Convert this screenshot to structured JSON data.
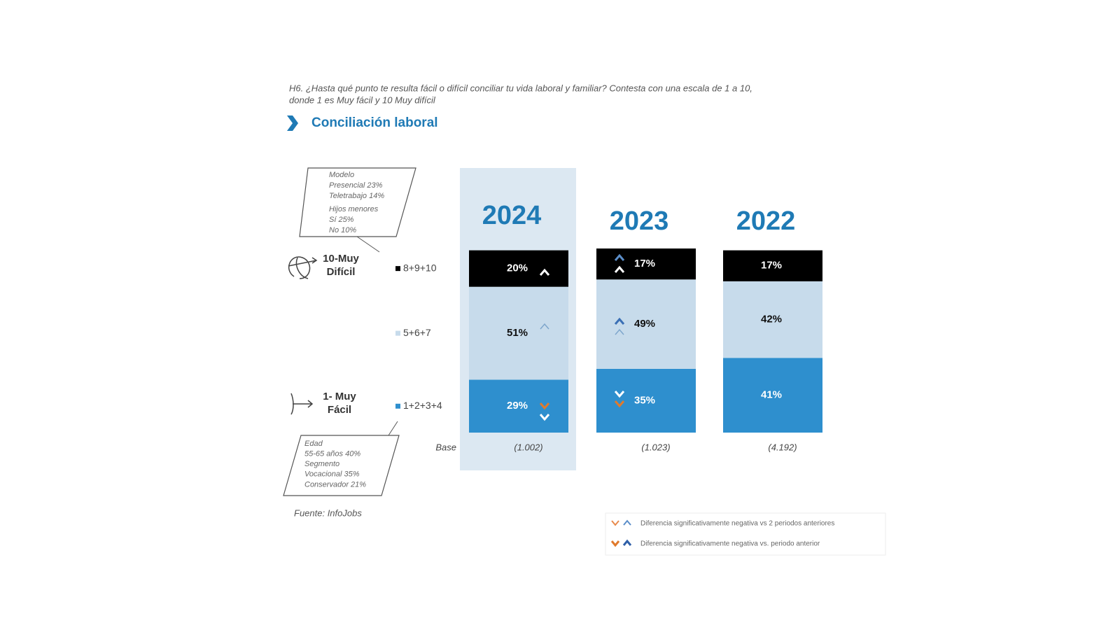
{
  "question": [
    "H6. ¿Hasta qué punto te resulta fácil o difícil conciliar tu vida laboral y familiar? Contesta con una escala de 1 a 10,",
    "donde 1 es Muy fácil y 10 Muy difícil"
  ],
  "chart_data": {
    "type": "bar",
    "stacked": true,
    "title": "Conciliación laboral",
    "categories": [
      "2024",
      "2023",
      "2022"
    ],
    "highlight_category": "2024",
    "series": [
      {
        "name": "1+2+3+4",
        "color": "#2e8fce",
        "values": [
          29,
          35,
          41
        ],
        "value_labels": [
          "29%",
          "35%",
          "41%"
        ]
      },
      {
        "name": "5+6+7",
        "color": "#c7dbeb",
        "values": [
          51,
          49,
          42
        ],
        "value_labels": [
          "51%",
          "49%",
          "42%"
        ]
      },
      {
        "name": "8+9+10",
        "color": "#000000",
        "values": [
          20,
          17,
          17
        ],
        "value_labels": [
          "20%",
          "17%",
          "17%"
        ]
      }
    ],
    "base_label": "Base",
    "bases": [
      "(1.002)",
      "(1.023)",
      "(4.192)"
    ],
    "scale_top": [
      "10-Muy",
      "Difícil"
    ],
    "scale_bottom": [
      "1- Muy",
      "Fácil"
    ],
    "callout_top": [
      "Modelo",
      "Presencial 23%",
      "Teletrabajo 14%",
      "Hijos menores",
      "Sí 25%",
      "No 10%"
    ],
    "callout_bottom": [
      "Edad",
      "55-65 años 40%",
      "Segmento",
      "Vocacional 35%",
      "Conservador 21%"
    ],
    "source": "Fuente: InfoJobs",
    "notes": [
      "Diferencia significativamente negativa vs 2 periodos anteriores",
      "Diferencia significativamente negativa vs. periodo anterior"
    ]
  }
}
